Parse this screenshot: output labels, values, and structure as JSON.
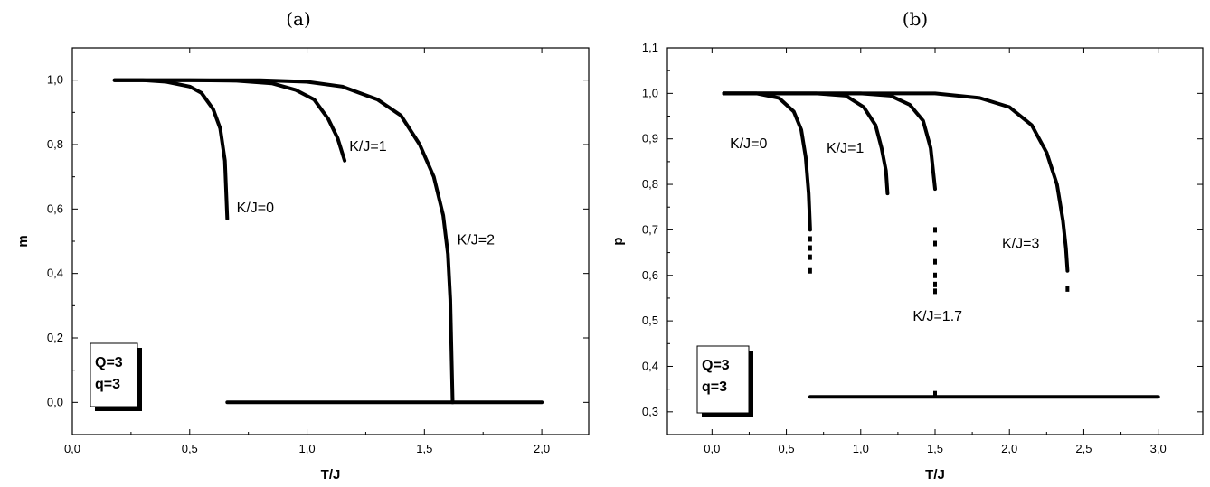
{
  "chart_data": [
    {
      "type": "line",
      "title": "(a)",
      "xlabel": "T/J",
      "ylabel": "m",
      "xlim": [
        0.0,
        2.2
      ],
      "ylim": [
        -0.1,
        1.1
      ],
      "xticks": [
        "0,0",
        "0,5",
        "1,0",
        "1,5",
        "2,0"
      ],
      "yticks": [
        "0,0",
        "0,2",
        "0,4",
        "0,6",
        "0,8",
        "1,0"
      ],
      "grid": false,
      "legend_box": {
        "lines": [
          "Q=3",
          "q=3"
        ],
        "placement": "bottom-left"
      },
      "series": [
        {
          "name": "K/J=0",
          "tc": 0.66,
          "m_end": 0.57,
          "x": [
            0.18,
            0.3,
            0.4,
            0.5,
            0.55,
            0.6,
            0.63,
            0.65,
            0.66
          ],
          "y": [
            1.0,
            1.0,
            0.995,
            0.98,
            0.96,
            0.91,
            0.85,
            0.75,
            0.57
          ]
        },
        {
          "name": "K/J=1",
          "tc": 1.16,
          "m_end": 0.75,
          "x": [
            0.18,
            0.5,
            0.7,
            0.85,
            0.95,
            1.03,
            1.09,
            1.13,
            1.16
          ],
          "y": [
            1.0,
            1.0,
            0.998,
            0.99,
            0.97,
            0.94,
            0.88,
            0.82,
            0.75
          ]
        },
        {
          "name": "K/J=2",
          "tc": 1.62,
          "m_end": 0.0,
          "x": [
            0.18,
            0.8,
            1.0,
            1.15,
            1.3,
            1.4,
            1.48,
            1.54,
            1.58,
            1.6,
            1.61,
            1.62
          ],
          "y": [
            1.0,
            1.0,
            0.995,
            0.98,
            0.94,
            0.89,
            0.8,
            0.7,
            0.58,
            0.46,
            0.32,
            0.0
          ]
        },
        {
          "name": "",
          "x": [
            0.66,
            2.0
          ],
          "y": [
            0.0,
            0.0
          ]
        }
      ],
      "annotations": [
        {
          "text": "K/J=0",
          "x": 0.7,
          "y": 0.59
        },
        {
          "text": "K/J=1",
          "x": 1.18,
          "y": 0.78
        },
        {
          "text": "K/J=2",
          "x": 1.64,
          "y": 0.49
        }
      ]
    },
    {
      "type": "line",
      "title": "(b)",
      "xlabel": "T/J",
      "ylabel": "p",
      "xlim": [
        -0.3,
        3.3
      ],
      "ylim": [
        0.25,
        1.1
      ],
      "xticks": [
        "0,0",
        "0,5",
        "1,0",
        "1,5",
        "2,0",
        "2,5",
        "3,0"
      ],
      "yticks": [
        "0,3",
        "0,4",
        "0,5",
        "0,6",
        "0,7",
        "0,8",
        "0,9",
        "1,0",
        "1,1"
      ],
      "grid": false,
      "legend_box": {
        "lines": [
          "Q=3",
          "q=3"
        ],
        "placement": "bottom-left"
      },
      "series": [
        {
          "name": "K/J=0",
          "tc": 0.66,
          "x": [
            0.08,
            0.3,
            0.45,
            0.55,
            0.6,
            0.63,
            0.65,
            0.66
          ],
          "y": [
            1.0,
            1.0,
            0.99,
            0.96,
            0.92,
            0.86,
            0.78,
            0.7
          ]
        },
        {
          "name": "K/J=1",
          "tc": 1.18,
          "x": [
            0.08,
            0.7,
            0.9,
            1.02,
            1.1,
            1.14,
            1.17,
            1.18
          ],
          "y": [
            1.0,
            1.0,
            0.995,
            0.97,
            0.93,
            0.88,
            0.83,
            0.78
          ]
        },
        {
          "name": "K/J=1.7",
          "tc": 1.5,
          "x": [
            0.08,
            1.0,
            1.2,
            1.33,
            1.42,
            1.47,
            1.5
          ],
          "y": [
            1.0,
            1.0,
            0.995,
            0.975,
            0.94,
            0.88,
            0.79
          ]
        },
        {
          "name": "K/J=3",
          "tc": 2.39,
          "x": [
            0.08,
            1.5,
            1.8,
            2.0,
            2.15,
            2.25,
            2.32,
            2.36,
            2.38,
            2.39
          ],
          "y": [
            1.0,
            1.0,
            0.99,
            0.97,
            0.93,
            0.87,
            0.8,
            0.72,
            0.66,
            0.61
          ]
        },
        {
          "name": "",
          "x": [
            0.66,
            3.0
          ],
          "y": [
            0.333,
            0.333
          ]
        }
      ],
      "scatter_points": [
        {
          "x": 0.66,
          "y": [
            0.68,
            0.66,
            0.64,
            0.61
          ]
        },
        {
          "x": 1.5,
          "y": [
            0.7,
            0.67,
            0.63,
            0.6,
            0.58,
            0.565,
            0.34
          ]
        },
        {
          "x": 2.39,
          "y": [
            0.57
          ]
        }
      ],
      "annotations": [
        {
          "text": "K/J=0",
          "x": 0.12,
          "y": 0.88
        },
        {
          "text": "K/J=1",
          "x": 0.77,
          "y": 0.87
        },
        {
          "text": "K/J=1.7",
          "x": 1.35,
          "y": 0.5
        },
        {
          "text": "K/J=3",
          "x": 1.95,
          "y": 0.66
        }
      ]
    }
  ]
}
